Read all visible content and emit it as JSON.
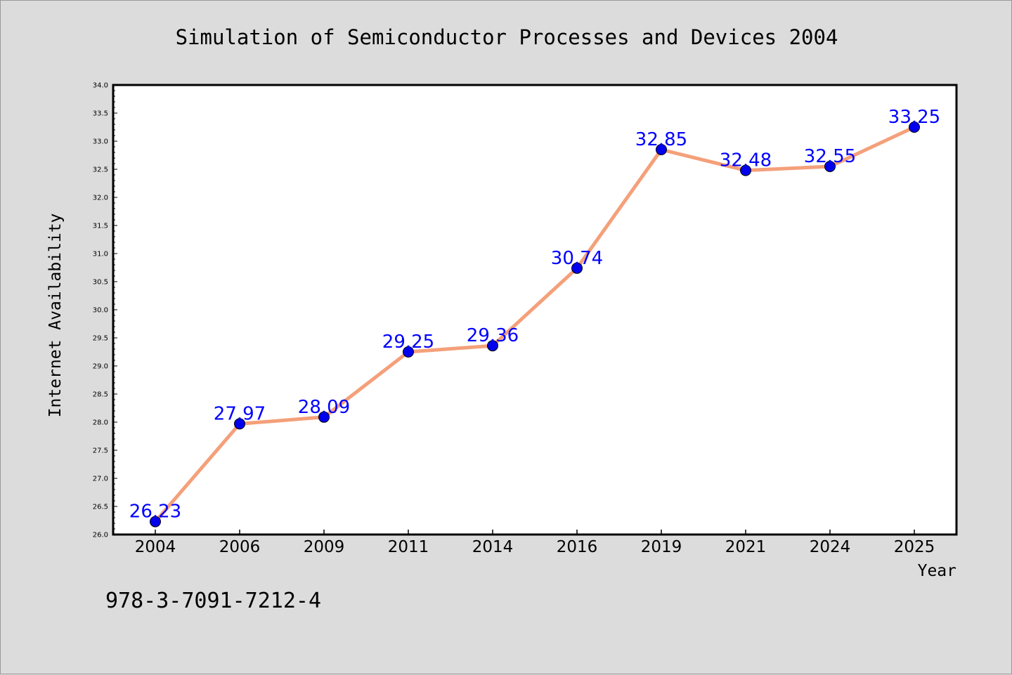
{
  "chart_data": {
    "type": "line",
    "title": "Simulation of Semiconductor Processes and Devices 2004",
    "xlabel": "Year",
    "ylabel": "Internet Availability",
    "categories": [
      "2004",
      "2006",
      "2009",
      "2011",
      "2014",
      "2016",
      "2019",
      "2021",
      "2024",
      "2025"
    ],
    "series": [
      {
        "values": [
          26.23,
          27.97,
          28.09,
          29.25,
          29.36,
          30.74,
          32.85,
          32.48,
          32.55,
          33.25
        ]
      }
    ],
    "ylim": [
      26.0,
      34.0
    ],
    "yticks": [
      "26.0",
      "26.5",
      "27.0",
      "27.5",
      "28.0",
      "28.5",
      "29.0",
      "29.5",
      "30.0",
      "30.5",
      "31.0",
      "31.5",
      "32.0",
      "32.5",
      "33.0",
      "33.5",
      "34.0"
    ],
    "data_labels": [
      "26.23",
      "27.97",
      "28.09",
      "29.25",
      "29.36",
      "30.74",
      "32.85",
      "32.48",
      "32.55",
      "33.25"
    ],
    "grid": false,
    "line_color": "#f4a07a",
    "marker_color": "#0000ee",
    "label_color": "#0000ff"
  },
  "footer": {
    "isbn": "978-3-7091-7212-4"
  }
}
